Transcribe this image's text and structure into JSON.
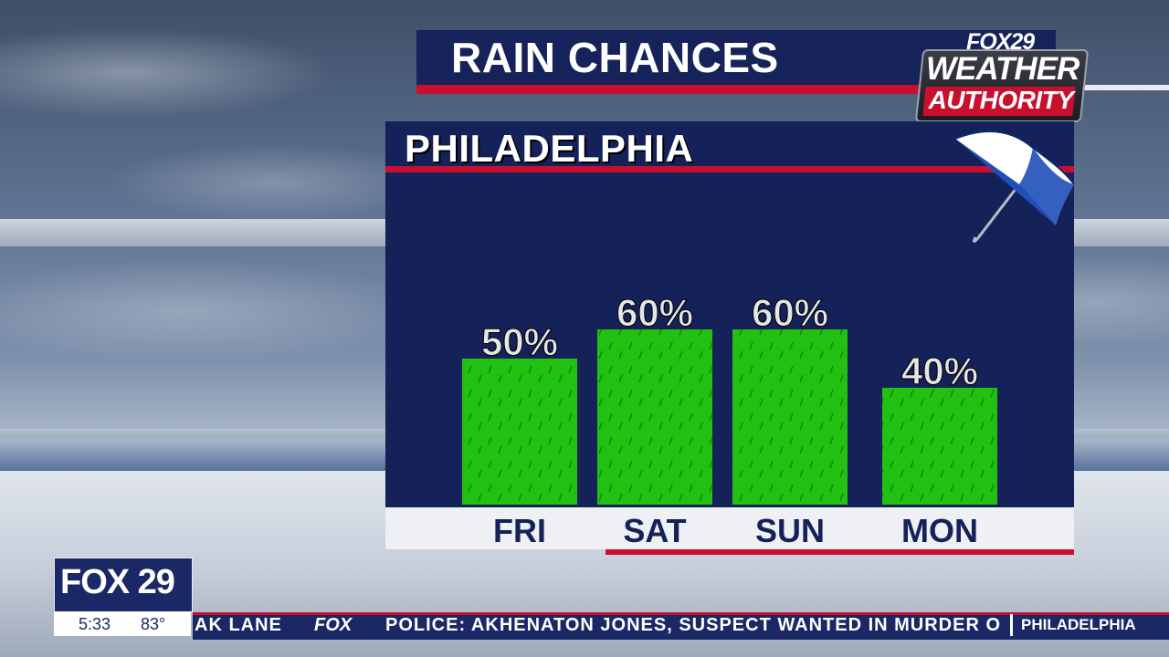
{
  "header": {
    "title": "RAIN CHANCES"
  },
  "logo": {
    "station": "FOX29",
    "line1": "WEATHER",
    "line2": "AUTHORITY"
  },
  "panel": {
    "city": "PHILADELPHIA"
  },
  "chart_data": {
    "type": "bar",
    "categories": [
      "FRI",
      "SAT",
      "SUN",
      "MON"
    ],
    "values": [
      50,
      60,
      60,
      40
    ],
    "value_labels": [
      "50%",
      "60%",
      "60%",
      "40%"
    ],
    "ylim": [
      0,
      100
    ],
    "bar_color": "#22c010",
    "label_color": "#e6e6e6"
  },
  "lower_third": {
    "brand": "FOX 29",
    "time": "5:33",
    "temperature": "83°",
    "ticker_left": "AK LANE",
    "ticker_brand": "FOX",
    "ticker_headline": "POLICE: AKHENATON JONES, SUSPECT WANTED IN MURDER O",
    "ticker_location": "PHILADELPHIA"
  },
  "colors": {
    "navy": "#15225a",
    "red": "#c8102e",
    "green": "#22c010"
  }
}
